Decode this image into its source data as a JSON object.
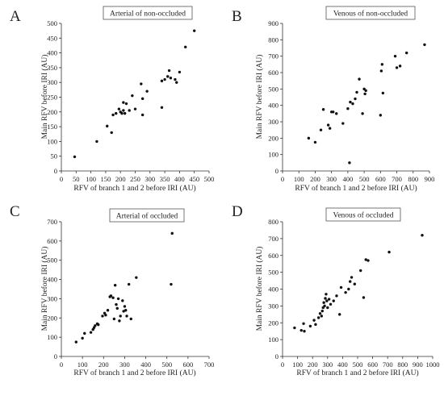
{
  "chart_data": [
    {
      "type": "scatter",
      "panel_label": "A",
      "title": "Arterial of non-occluded",
      "xlabel": "RFV of branch 1 and 2 before IRI (AU)",
      "ylabel": "Main RFV before IRI  (AU)",
      "xlim": [
        0,
        500
      ],
      "ylim": [
        0,
        500
      ],
      "xticks": [
        "0",
        "50",
        "100",
        "150",
        "200",
        "250",
        "300",
        "350",
        "400",
        "450",
        "500"
      ],
      "yticks": [
        "0",
        "50",
        "100",
        "150",
        "200",
        "250",
        "300",
        "350",
        "400",
        "450",
        "500"
      ],
      "points": [
        [
          45,
          48
        ],
        [
          120,
          100
        ],
        [
          155,
          152
        ],
        [
          170,
          130
        ],
        [
          175,
          190
        ],
        [
          185,
          195
        ],
        [
          195,
          210
        ],
        [
          200,
          200
        ],
        [
          205,
          195
        ],
        [
          210,
          205
        ],
        [
          210,
          232
        ],
        [
          215,
          195
        ],
        [
          220,
          228
        ],
        [
          230,
          205
        ],
        [
          240,
          255
        ],
        [
          250,
          210
        ],
        [
          270,
          295
        ],
        [
          275,
          245
        ],
        [
          275,
          190
        ],
        [
          290,
          270
        ],
        [
          340,
          215
        ],
        [
          340,
          305
        ],
        [
          350,
          310
        ],
        [
          360,
          320
        ],
        [
          365,
          340
        ],
        [
          370,
          315
        ],
        [
          385,
          310
        ],
        [
          390,
          300
        ],
        [
          400,
          335
        ],
        [
          420,
          420
        ],
        [
          450,
          475
        ]
      ]
    },
    {
      "type": "scatter",
      "panel_label": "B",
      "title": "Venous of non-occluded",
      "xlabel": "RFV of branch 1 and 2 before IRI (AU)",
      "ylabel": "Main RFV before IRI  (AU)",
      "xlim": [
        0,
        900
      ],
      "ylim": [
        0,
        900
      ],
      "xticks": [
        "0",
        "100",
        "200",
        "300",
        "400",
        "500",
        "600",
        "700",
        "800",
        "900"
      ],
      "yticks": [
        "0",
        "100",
        "200",
        "300",
        "400",
        "500",
        "600",
        "700",
        "800",
        "900"
      ],
      "points": [
        [
          160,
          200
        ],
        [
          200,
          175
        ],
        [
          235,
          250
        ],
        [
          250,
          375
        ],
        [
          280,
          280
        ],
        [
          290,
          260
        ],
        [
          300,
          360
        ],
        [
          310,
          360
        ],
        [
          330,
          350
        ],
        [
          370,
          290
        ],
        [
          400,
          380
        ],
        [
          410,
          50
        ],
        [
          415,
          420
        ],
        [
          430,
          410
        ],
        [
          445,
          440
        ],
        [
          455,
          480
        ],
        [
          470,
          560
        ],
        [
          490,
          350
        ],
        [
          500,
          500
        ],
        [
          505,
          470
        ],
        [
          510,
          490
        ],
        [
          600,
          340
        ],
        [
          605,
          610
        ],
        [
          610,
          650
        ],
        [
          615,
          475
        ],
        [
          690,
          700
        ],
        [
          700,
          630
        ],
        [
          720,
          640
        ],
        [
          760,
          720
        ],
        [
          870,
          770
        ]
      ]
    },
    {
      "type": "scatter",
      "panel_label": "C",
      "title": "Arterial of occluded",
      "xlabel": "RFV of branch 1 and 2 before IRI (AU)",
      "ylabel": "Main RFV before IRI  (AU)",
      "xlim": [
        0,
        700
      ],
      "ylim": [
        0,
        700
      ],
      "xticks": [
        "0",
        "100",
        "200",
        "300",
        "400",
        "500",
        "600",
        "700"
      ],
      "yticks": [
        "0",
        "100",
        "200",
        "300",
        "400",
        "500",
        "600",
        "700"
      ],
      "points": [
        [
          70,
          75
        ],
        [
          100,
          95
        ],
        [
          110,
          120
        ],
        [
          140,
          125
        ],
        [
          150,
          140
        ],
        [
          155,
          150
        ],
        [
          160,
          160
        ],
        [
          170,
          170
        ],
        [
          175,
          165
        ],
        [
          195,
          210
        ],
        [
          205,
          225
        ],
        [
          210,
          215
        ],
        [
          220,
          240
        ],
        [
          230,
          310
        ],
        [
          235,
          315
        ],
        [
          245,
          305
        ],
        [
          250,
          195
        ],
        [
          255,
          370
        ],
        [
          260,
          270
        ],
        [
          265,
          250
        ],
        [
          270,
          300
        ],
        [
          275,
          185
        ],
        [
          280,
          210
        ],
        [
          290,
          290
        ],
        [
          295,
          235
        ],
        [
          300,
          260
        ],
        [
          305,
          240
        ],
        [
          310,
          210
        ],
        [
          320,
          375
        ],
        [
          330,
          195
        ],
        [
          355,
          410
        ],
        [
          520,
          375
        ],
        [
          525,
          640
        ]
      ]
    },
    {
      "type": "scatter",
      "panel_label": "D",
      "title": "Venous of occluded",
      "xlabel": "RFV of branch 1 and 2 before IRI (AU)",
      "ylabel": "Main RFV before IRI  (AU)",
      "xlim": [
        0,
        1000
      ],
      "ylim": [
        0,
        800
      ],
      "xticks": [
        "0",
        "100",
        "200",
        "300",
        "400",
        "500",
        "600",
        "700",
        "800",
        "900",
        "1000"
      ],
      "yticks": [
        "0",
        "100",
        "200",
        "300",
        "400",
        "500",
        "600",
        "700",
        "800"
      ],
      "points": [
        [
          80,
          170
        ],
        [
          125,
          155
        ],
        [
          140,
          195
        ],
        [
          145,
          150
        ],
        [
          185,
          180
        ],
        [
          210,
          215
        ],
        [
          220,
          190
        ],
        [
          240,
          230
        ],
        [
          250,
          255
        ],
        [
          260,
          240
        ],
        [
          265,
          270
        ],
        [
          270,
          290
        ],
        [
          275,
          320
        ],
        [
          280,
          300
        ],
        [
          285,
          345
        ],
        [
          290,
          370
        ],
        [
          295,
          330
        ],
        [
          300,
          290
        ],
        [
          310,
          340
        ],
        [
          320,
          310
        ],
        [
          340,
          330
        ],
        [
          360,
          360
        ],
        [
          380,
          250
        ],
        [
          390,
          410
        ],
        [
          420,
          380
        ],
        [
          440,
          400
        ],
        [
          450,
          445
        ],
        [
          460,
          470
        ],
        [
          480,
          430
        ],
        [
          520,
          510
        ],
        [
          540,
          350
        ],
        [
          555,
          575
        ],
        [
          570,
          570
        ],
        [
          710,
          620
        ],
        [
          930,
          720
        ]
      ]
    }
  ]
}
